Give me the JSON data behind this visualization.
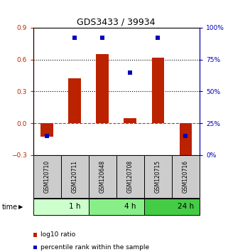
{
  "title": "GDS3433 / 39934",
  "samples": [
    "GSM120710",
    "GSM120711",
    "GSM120648",
    "GSM120708",
    "GSM120715",
    "GSM120716"
  ],
  "log10_ratio": [
    -0.13,
    0.42,
    0.65,
    0.05,
    0.62,
    -0.32
  ],
  "percentile_rank": [
    15,
    92,
    92,
    65,
    92,
    15
  ],
  "bar_color": "#bb2200",
  "dot_color": "#0000bb",
  "ylim_left": [
    -0.3,
    0.9
  ],
  "ylim_right": [
    0,
    100
  ],
  "yticks_left": [
    -0.3,
    0.0,
    0.3,
    0.6,
    0.9
  ],
  "yticks_right": [
    0,
    25,
    50,
    75,
    100
  ],
  "dotted_lines": [
    0.3,
    0.6
  ],
  "dashed_line": 0.0,
  "time_groups": [
    {
      "label": "1 h",
      "start": 0,
      "end": 2,
      "color": "#ccffcc"
    },
    {
      "label": "4 h",
      "start": 2,
      "end": 4,
      "color": "#88ee88"
    },
    {
      "label": "24 h",
      "start": 4,
      "end": 6,
      "color": "#44cc44"
    }
  ],
  "legend_items": [
    {
      "label": "log10 ratio",
      "color": "#bb2200"
    },
    {
      "label": "percentile rank within the sample",
      "color": "#0000bb"
    }
  ],
  "bar_width": 0.45,
  "background_color": "#ffffff",
  "sample_box_color": "#cccccc"
}
